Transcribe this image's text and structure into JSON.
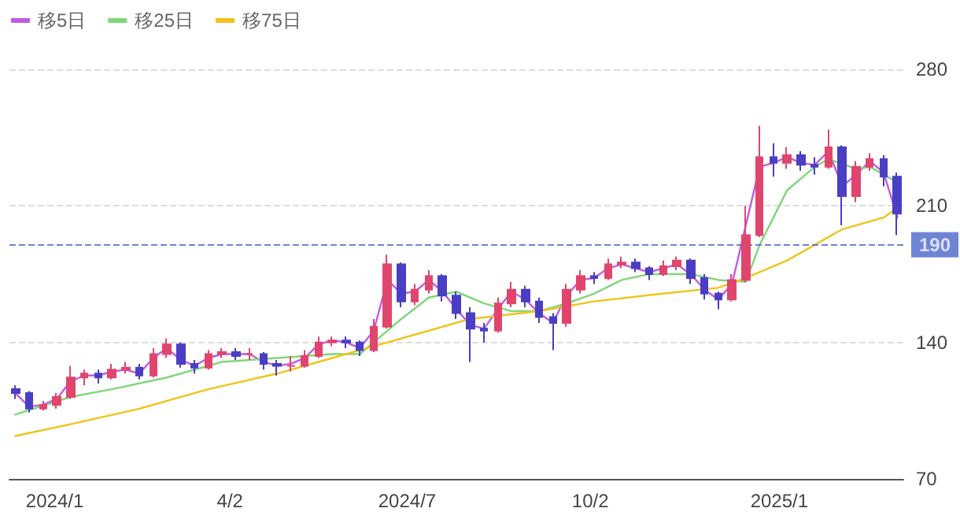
{
  "chart_data": {
    "type": "candlestick",
    "x": [
      "2023-12-15",
      "2023-12-22",
      "2023-12-29",
      "2024-01-05",
      "2024-01-12",
      "2024-01-19",
      "2024-01-26",
      "2024-02-02",
      "2024-02-09",
      "2024-02-16",
      "2024-02-23",
      "2024-03-01",
      "2024-03-08",
      "2024-03-15",
      "2024-03-22",
      "2024-03-29",
      "2024-04-05",
      "2024-04-12",
      "2024-04-19",
      "2024-04-26",
      "2024-05-03",
      "2024-05-10",
      "2024-05-17",
      "2024-05-24",
      "2024-05-31",
      "2024-06-07",
      "2024-06-14",
      "2024-06-21",
      "2024-06-28",
      "2024-07-05",
      "2024-07-12",
      "2024-07-19",
      "2024-07-26",
      "2024-08-02",
      "2024-08-09",
      "2024-08-16",
      "2024-08-23",
      "2024-08-30",
      "2024-09-06",
      "2024-09-13",
      "2024-09-20",
      "2024-09-27",
      "2024-10-04",
      "2024-10-11",
      "2024-10-18",
      "2024-10-25",
      "2024-11-01",
      "2024-11-08",
      "2024-11-15",
      "2024-11-22",
      "2024-11-29",
      "2024-12-06",
      "2024-12-13",
      "2024-12-20",
      "2024-12-27",
      "2025-01-03",
      "2025-01-10",
      "2025-01-17",
      "2025-01-24",
      "2025-01-31",
      "2025-02-07",
      "2025-02-14",
      "2025-02-21",
      "2025-02-28",
      "2025-03-07"
    ],
    "ohlc": [
      [
        116,
        118,
        111,
        114
      ],
      [
        114,
        115,
        104,
        106
      ],
      [
        106,
        110,
        105,
        108
      ],
      [
        108,
        114,
        106,
        112
      ],
      [
        112,
        128,
        111,
        122
      ],
      [
        122,
        126,
        118,
        124
      ],
      [
        124,
        126,
        119,
        122
      ],
      [
        122,
        129,
        121,
        126
      ],
      [
        126,
        130,
        124,
        127
      ],
      [
        127,
        129,
        121,
        123
      ],
      [
        123,
        137,
        122,
        134
      ],
      [
        134,
        142,
        132,
        139
      ],
      [
        139,
        140,
        127,
        129
      ],
      [
        129,
        131,
        124,
        127
      ],
      [
        127,
        136,
        126,
        134
      ],
      [
        134,
        137,
        132,
        135
      ],
      [
        135,
        137,
        131,
        133
      ],
      [
        134,
        137,
        131,
        134
      ],
      [
        134,
        135,
        126,
        129
      ],
      [
        129,
        131,
        123,
        128
      ],
      [
        128,
        133,
        125,
        128
      ],
      [
        128,
        136,
        127,
        133
      ],
      [
        133,
        143,
        132,
        140
      ],
      [
        140,
        143,
        138,
        141
      ],
      [
        141,
        143,
        137,
        140
      ],
      [
        140,
        141,
        133,
        136
      ],
      [
        136,
        152,
        135,
        148
      ],
      [
        148,
        185,
        147,
        180
      ],
      [
        180,
        181,
        158,
        161
      ],
      [
        161,
        170,
        159,
        167
      ],
      [
        167,
        177,
        165,
        174
      ],
      [
        174,
        175,
        161,
        164
      ],
      [
        164,
        166,
        152,
        155
      ],
      [
        155,
        158,
        130,
        147
      ],
      [
        147,
        150,
        140,
        146
      ],
      [
        146,
        163,
        145,
        160
      ],
      [
        160,
        171,
        158,
        167
      ],
      [
        167,
        169,
        158,
        161
      ],
      [
        161,
        163,
        150,
        153
      ],
      [
        153,
        155,
        136,
        150
      ],
      [
        150,
        170,
        148,
        167
      ],
      [
        167,
        177,
        165,
        174
      ],
      [
        174,
        176,
        170,
        173
      ],
      [
        173,
        183,
        172,
        180
      ],
      [
        180,
        184,
        178,
        181
      ],
      [
        181,
        183,
        176,
        178
      ],
      [
        178,
        179,
        172,
        175
      ],
      [
        175,
        182,
        174,
        179
      ],
      [
        179,
        184,
        177,
        182
      ],
      [
        182,
        183,
        170,
        173
      ],
      [
        173,
        175,
        162,
        165
      ],
      [
        165,
        166,
        157,
        162
      ],
      [
        162,
        175,
        161,
        172
      ],
      [
        172,
        210,
        171,
        195
      ],
      [
        195,
        251,
        194,
        235
      ],
      [
        235,
        242,
        225,
        232
      ],
      [
        232,
        240,
        229,
        236
      ],
      [
        236,
        238,
        228,
        231
      ],
      [
        231,
        235,
        226,
        230
      ],
      [
        230,
        249,
        229,
        240
      ],
      [
        240,
        241,
        200,
        215
      ],
      [
        215,
        233,
        212,
        230
      ],
      [
        230,
        237,
        228,
        234
      ],
      [
        234,
        236,
        220,
        225
      ],
      [
        225,
        227,
        195,
        206
      ]
    ],
    "colors": [
      "#4a3ec4",
      "#4a3ec4",
      "#e0456e",
      "#e0456e",
      "#e0456e",
      "#e0456e",
      "#4a3ec4",
      "#e0456e",
      "#e0456e",
      "#4a3ec4",
      "#e0456e",
      "#e0456e",
      "#4a3ec4",
      "#4a3ec4",
      "#e0456e",
      "#e0456e",
      "#4a3ec4",
      "#e0456e",
      "#4a3ec4",
      "#4a3ec4",
      "#e0456e",
      "#e0456e",
      "#e0456e",
      "#e0456e",
      "#4a3ec4",
      "#4a3ec4",
      "#e0456e",
      "#e0456e",
      "#4a3ec4",
      "#e0456e",
      "#e0456e",
      "#4a3ec4",
      "#4a3ec4",
      "#4a3ec4",
      "#4a3ec4",
      "#e0456e",
      "#e0456e",
      "#4a3ec4",
      "#4a3ec4",
      "#4a3ec4",
      "#e0456e",
      "#e0456e",
      "#4a3ec4",
      "#e0456e",
      "#e0456e",
      "#4a3ec4",
      "#4a3ec4",
      "#e0456e",
      "#e0456e",
      "#4a3ec4",
      "#4a3ec4",
      "#4a3ec4",
      "#e0456e",
      "#e0456e",
      "#e0456e",
      "#4a3ec4",
      "#e0456e",
      "#4a3ec4",
      "#4a3ec4",
      "#e0456e",
      "#4a3ec4",
      "#e0456e",
      "#e0456e",
      "#4a3ec4",
      "#4a3ec4"
    ],
    "series": [
      {
        "name": "移5日",
        "type": "line",
        "color": "#c25be0",
        "x": [
          "2023-12-15",
          "2023-12-22",
          "2023-12-29",
          "2024-01-05",
          "2024-01-12",
          "2024-01-19",
          "2024-01-26",
          "2024-02-02",
          "2024-02-09",
          "2024-02-16",
          "2024-02-23",
          "2024-03-01",
          "2024-03-08",
          "2024-03-15",
          "2024-03-22",
          "2024-03-29",
          "2024-04-05",
          "2024-04-12",
          "2024-04-19",
          "2024-04-26",
          "2024-05-03",
          "2024-05-10",
          "2024-05-17",
          "2024-05-24",
          "2024-05-31",
          "2024-06-07",
          "2024-06-14",
          "2024-06-21",
          "2024-06-28",
          "2024-07-05",
          "2024-07-12",
          "2024-07-19",
          "2024-07-26",
          "2024-08-02",
          "2024-08-09",
          "2024-08-16",
          "2024-08-23",
          "2024-08-30",
          "2024-09-06",
          "2024-09-13",
          "2024-09-20",
          "2024-09-27",
          "2024-10-04",
          "2024-10-11",
          "2024-10-18",
          "2024-10-25",
          "2024-11-01",
          "2024-11-08",
          "2024-11-15",
          "2024-11-22",
          "2024-11-29",
          "2024-12-06",
          "2024-12-13",
          "2024-12-20",
          "2024-12-27",
          "2025-01-03",
          "2025-01-10",
          "2025-01-17",
          "2025-01-24",
          "2025-01-31",
          "2025-02-07",
          "2025-02-14",
          "2025-02-21",
          "2025-02-28",
          "2025-03-07"
        ],
        "values": [
          114,
          107,
          108,
          111,
          120,
          123,
          123,
          125,
          126,
          124,
          132,
          137,
          131,
          128,
          132,
          134,
          134,
          134,
          130,
          128,
          129,
          132,
          139,
          141,
          140,
          137,
          146,
          172,
          165,
          166,
          172,
          166,
          157,
          149,
          147,
          157,
          166,
          162,
          155,
          150,
          164,
          172,
          173,
          178,
          180,
          178,
          176,
          178,
          180,
          175,
          167,
          162,
          170,
          200,
          230,
          232,
          235,
          232,
          231,
          238,
          220,
          226,
          233,
          227,
          204
        ]
      },
      {
        "name": "移25日",
        "type": "line",
        "color": "#7fd67a",
        "x": [
          "2023-12-15",
          "2024-01-12",
          "2024-02-02",
          "2024-03-01",
          "2024-03-29",
          "2024-04-26",
          "2024-05-24",
          "2024-06-07",
          "2024-06-14",
          "2024-06-28",
          "2024-07-12",
          "2024-07-26",
          "2024-08-09",
          "2024-08-23",
          "2024-09-06",
          "2024-09-20",
          "2024-10-04",
          "2024-10-18",
          "2024-11-01",
          "2024-11-22",
          "2024-12-06",
          "2024-12-20",
          "2024-12-27",
          "2025-01-10",
          "2025-01-24",
          "2025-01-31",
          "2025-02-14",
          "2025-02-21",
          "2025-03-07"
        ],
        "values": [
          103,
          112,
          116,
          122,
          130,
          132,
          134,
          134,
          140,
          152,
          163,
          166,
          160,
          156,
          156,
          160,
          165,
          172,
          175,
          175,
          172,
          171,
          190,
          218,
          230,
          234,
          229,
          230,
          222
        ]
      },
      {
        "name": "移75日",
        "type": "line",
        "color": "#f0c419",
        "x": [
          "2023-12-15",
          "2024-01-12",
          "2024-02-16",
          "2024-03-22",
          "2024-04-26",
          "2024-05-24",
          "2024-06-14",
          "2024-07-05",
          "2024-08-02",
          "2024-09-06",
          "2024-10-04",
          "2024-11-08",
          "2024-12-06",
          "2024-12-20",
          "2025-01-10",
          "2025-01-24",
          "2025-02-07",
          "2025-02-28",
          "2025-03-07"
        ],
        "values": [
          92,
          98,
          106,
          116,
          124,
          132,
          138,
          144,
          152,
          156,
          161,
          165,
          168,
          173,
          182,
          190,
          198,
          204,
          209
        ]
      }
    ],
    "xlim": [
      "2023-12-12",
      "2025-03-10"
    ],
    "xticks": [
      {
        "value": "2024-01-04",
        "label": "2024/1"
      },
      {
        "value": "2024-04-02",
        "label": "4/2"
      },
      {
        "value": "2024-07-01",
        "label": "2024/7"
      },
      {
        "value": "2024-10-02",
        "label": "10/2"
      },
      {
        "value": "2025-01-06",
        "label": "2025/1"
      }
    ],
    "ylim": [
      70,
      280
    ],
    "yticks": [
      70,
      140,
      210,
      280
    ],
    "ref_lines": [
      {
        "axis": "y",
        "value": 190,
        "label": "190",
        "color": "#3f5bc6",
        "line_style": "dashed"
      }
    ],
    "grid": "y",
    "legend": "top left",
    "line_style": "solid",
    "marker": "none"
  }
}
